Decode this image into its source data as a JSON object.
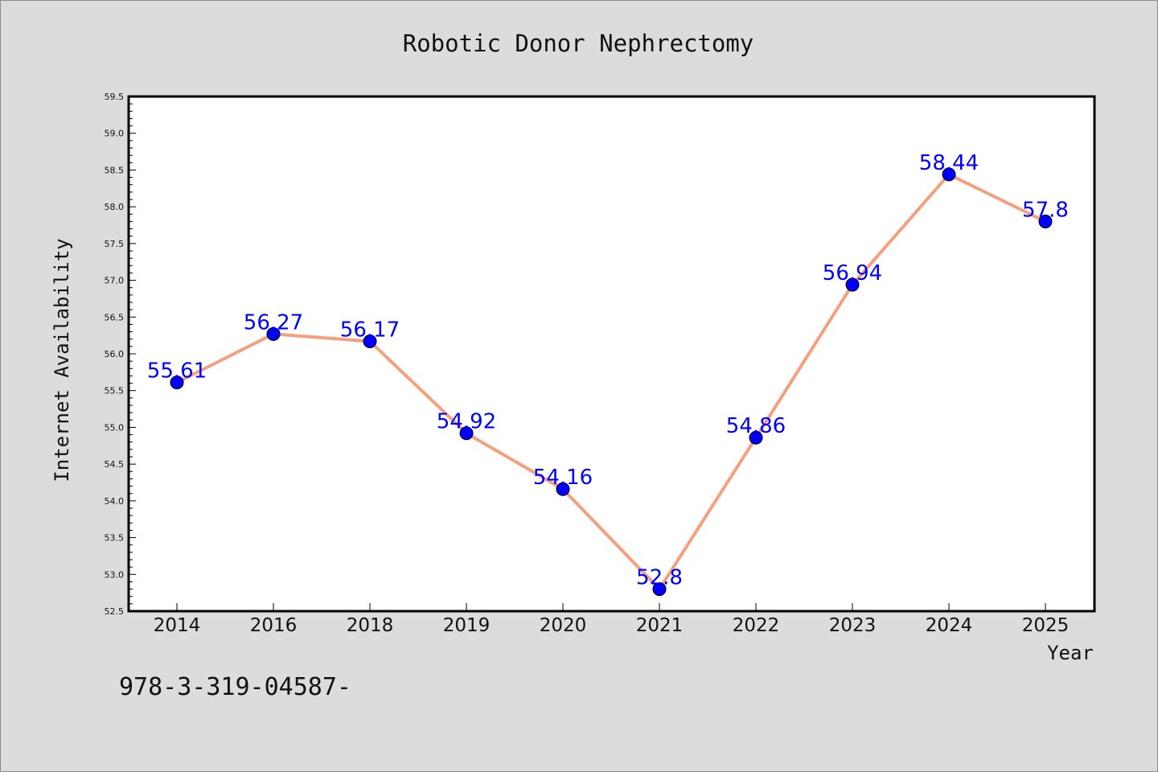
{
  "chart_data": {
    "type": "line",
    "title": "Robotic Donor Nephrectomy",
    "xlabel": "Year",
    "ylabel": "Internet Availability",
    "categories": [
      "2014",
      "2016",
      "2018",
      "2019",
      "2020",
      "2021",
      "2022",
      "2023",
      "2024",
      "2025"
    ],
    "series": [
      {
        "values": [
          55.61,
          56.27,
          56.17,
          54.92,
          54.16,
          52.8,
          54.86,
          56.94,
          58.44,
          57.8
        ],
        "data_labels": [
          "55.61",
          "56.27",
          "56.17",
          "54.92",
          "54.16",
          "52.8",
          "54.86",
          "56.94",
          "58.44",
          "57.8"
        ],
        "line_color": "#f4a07f",
        "marker_color": "#0000ff"
      }
    ],
    "ylim": [
      52.5,
      59.5
    ],
    "yticks": [
      52.5,
      53.0,
      53.5,
      54.0,
      54.5,
      55.0,
      55.5,
      56.0,
      56.5,
      57.0,
      57.5,
      58.0,
      58.5,
      59.0,
      59.5
    ],
    "ytick_labels": [
      "52.5",
      "53.0",
      "53.5",
      "54.0",
      "54.5",
      "55.0",
      "55.5",
      "56.0",
      "56.5",
      "57.0",
      "57.5",
      "58.0",
      "58.5",
      "59.0",
      "59.5"
    ],
    "grid": false,
    "legend": "none"
  },
  "footer": {
    "text": "978-3-319-04587-"
  },
  "colors": {
    "background": "#dcdcdc",
    "plot_background": "#ffffff",
    "line": "#f4a07f",
    "marker": "#0000ff",
    "data_label": "#0000ff"
  }
}
